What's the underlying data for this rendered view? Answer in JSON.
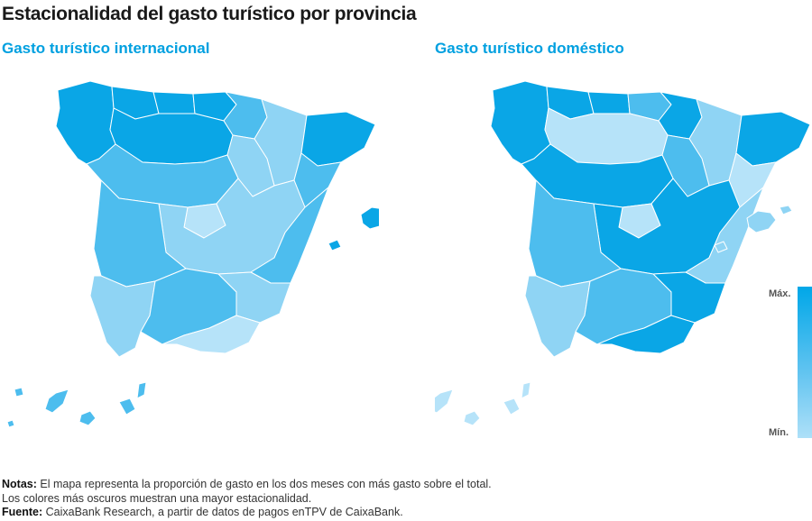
{
  "title": "Estacionalidad del gasto turístico por provincia",
  "maps": [
    {
      "subtitle": "Gasto turístico internacional",
      "palette": {
        "dark": "#0aa6e6",
        "mid": "#4dbdee",
        "light": "#8fd4f4",
        "pale": "#b6e3f9"
      },
      "zones": {
        "galicia": "dark",
        "asturias": "dark",
        "cantabria": "dark",
        "pais-vasco": "dark",
        "navarra": "mid",
        "aragon-north": "light",
        "catalonia-north": "dark",
        "catalonia-south": "mid",
        "castilla-leon-north": "dark",
        "castilla-leon-south": "mid",
        "rioja": "light",
        "madrid": "pale",
        "castilla-mancha": "light",
        "extremadura": "mid",
        "valencia": "mid",
        "murcia": "light",
        "andalusia-west": "light",
        "andalusia-center": "mid",
        "andalusia-east": "pale",
        "baleares": "dark",
        "canarias": "mid"
      }
    },
    {
      "subtitle": "Gasto turístico doméstico",
      "palette": {
        "dark": "#0aa6e6",
        "mid": "#4dbdee",
        "light": "#8fd4f4",
        "pale": "#b6e3f9"
      },
      "zones": {
        "galicia": "dark",
        "asturias": "dark",
        "cantabria": "dark",
        "pais-vasco": "mid",
        "navarra": "dark",
        "aragon-north": "light",
        "catalonia-north": "dark",
        "catalonia-south": "pale",
        "castilla-leon-north": "pale",
        "castilla-leon-south": "dark",
        "rioja": "mid",
        "madrid": "pale",
        "castilla-mancha": "dark",
        "extremadura": "mid",
        "valencia": "light",
        "murcia": "dark",
        "andalusia-west": "light",
        "andalusia-center": "mid",
        "andalusia-east": "dark",
        "baleares": "light",
        "canarias": "pale"
      }
    }
  ],
  "legend": {
    "max": "Máx.",
    "min": "Mín."
  },
  "notes": {
    "notes_label": "Notas:",
    "notes_line1": " El mapa representa la proporción de gasto en los dos meses con más gasto sobre el total.",
    "notes_line2": "Los colores más oscuros muestran una mayor estacionalidad.",
    "source_label": "Fuente:",
    "source_text": " CaixaBank Research, a partir de datos de pagos enTPV de CaixaBank."
  }
}
